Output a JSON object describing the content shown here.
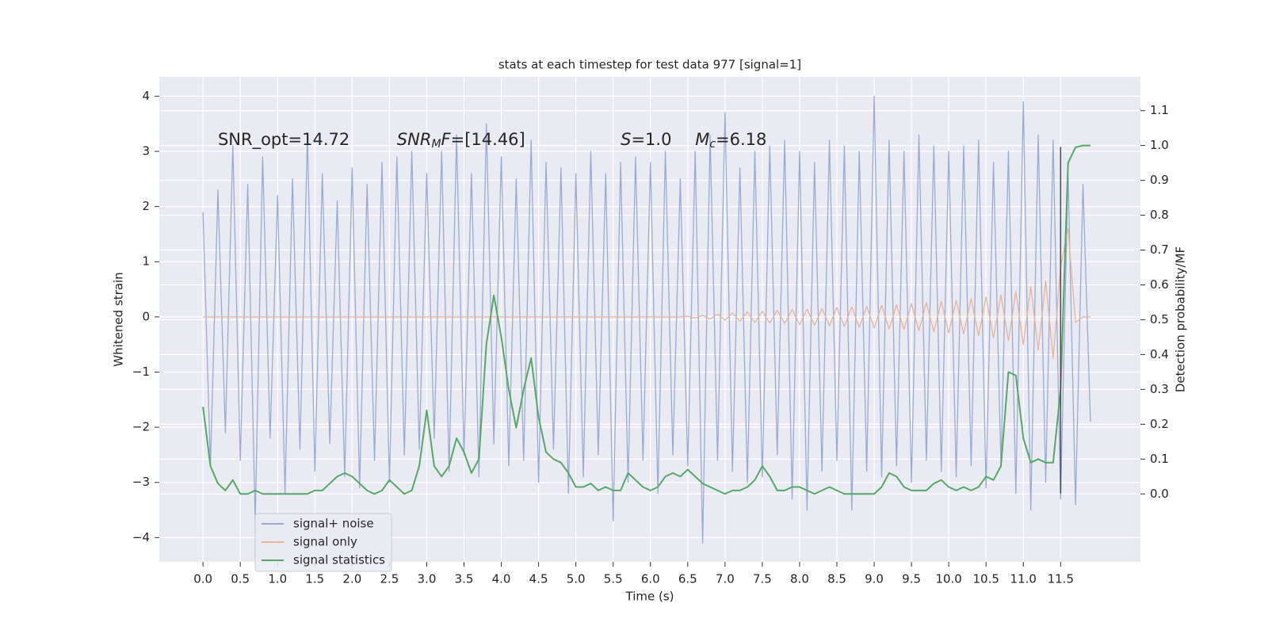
{
  "chart_data": {
    "type": "line",
    "title": "stats at each timestep for test data 977 [signal=1]",
    "xlabel": "Time (s)",
    "ylabel": "Whitened strain",
    "y2label": "Detection probability/MF",
    "background": "#eaeaf2",
    "grid": true,
    "legend": "lower left",
    "xlim": [
      -0.586,
      12.57
    ],
    "ylim": [
      -4.44,
      4.35
    ],
    "y2lim": [
      -0.195,
      1.197
    ],
    "xticks": [
      {
        "value": 0,
        "label": "0.0"
      },
      0.5,
      {
        "value": 1,
        "label": "1.0"
      },
      1.5,
      {
        "value": 2,
        "label": "2.0"
      },
      2.5,
      {
        "value": 3,
        "label": "3.0"
      },
      3.5,
      {
        "value": 4,
        "label": "4.0"
      },
      4.5,
      {
        "value": 5,
        "label": "5.0"
      },
      5.5,
      {
        "value": 6,
        "label": "6.0"
      },
      6.5,
      {
        "value": 7,
        "label": "7.0"
      },
      7.5,
      {
        "value": 8,
        "label": "8.0"
      },
      8.5,
      {
        "value": 9,
        "label": "9.0"
      },
      9.5,
      {
        "value": 10,
        "label": "10.0"
      },
      10.5,
      {
        "value": 11,
        "label": "11.0"
      },
      11.5
    ],
    "yticks": [
      {
        "value": -4,
        "label": "−4"
      },
      {
        "value": -3,
        "label": "−3"
      },
      {
        "value": -2,
        "label": "−2"
      },
      {
        "value": -1,
        "label": "−1"
      },
      0,
      1,
      2,
      3,
      4
    ],
    "y2ticks": [
      {
        "value": 0,
        "label": "0.0"
      },
      0.1,
      0.2,
      0.3,
      0.4,
      0.5,
      0.6,
      0.7,
      0.8,
      0.9,
      {
        "value": 1,
        "label": "1.0"
      },
      1.1
    ],
    "x": [
      0,
      0.1,
      0.2,
      0.3,
      0.4,
      0.5,
      0.6,
      0.7,
      0.8,
      0.9,
      1,
      1.1,
      1.2,
      1.3,
      1.4,
      1.5,
      1.6,
      1.7,
      1.8,
      1.9,
      2,
      2.1,
      2.2,
      2.3,
      2.4,
      2.5,
      2.6,
      2.7,
      2.8,
      2.9,
      3,
      3.1,
      3.2,
      3.3,
      3.4,
      3.5,
      3.6,
      3.7,
      3.8,
      3.9,
      4,
      4.1,
      4.2,
      4.3,
      4.4,
      4.5,
      4.6,
      4.7,
      4.8,
      4.9,
      5,
      5.1,
      5.2,
      5.3,
      5.4,
      5.5,
      5.6,
      5.7,
      5.8,
      5.9,
      6,
      6.1,
      6.2,
      6.3,
      6.4,
      6.5,
      6.6,
      6.7,
      6.8,
      6.9,
      7,
      7.1,
      7.2,
      7.3,
      7.4,
      7.5,
      7.6,
      7.7,
      7.8,
      7.9,
      8,
      8.1,
      8.2,
      8.3,
      8.4,
      8.5,
      8.6,
      8.7,
      8.8,
      8.9,
      9,
      9.1,
      9.2,
      9.3,
      9.4,
      9.5,
      9.6,
      9.7,
      9.8,
      9.9,
      10,
      10.1,
      10.2,
      10.3,
      10.4,
      10.5,
      10.6,
      10.7,
      10.8,
      10.9,
      11,
      11.1,
      11.2,
      11.3,
      11.4,
      11.5,
      11.6,
      11.7,
      11.8,
      11.9
    ],
    "series": [
      {
        "name": "signal+ noise",
        "color": "#9aabd3",
        "axis": "y",
        "values": [
          1.9,
          -2.7,
          2.3,
          -2.1,
          3.1,
          -2.6,
          2.4,
          -3.7,
          2.9,
          -2.2,
          2.2,
          -3.2,
          2.5,
          -2.4,
          3.3,
          -2.8,
          2.6,
          -2.3,
          2.1,
          -2.9,
          2.7,
          -3.1,
          2.4,
          -2.6,
          2.8,
          -3.0,
          2.9,
          -2.5,
          3.0,
          -2.4,
          2.6,
          -2.2,
          3.0,
          -2.8,
          3.3,
          -2.5,
          2.6,
          -2.9,
          3.5,
          -2.3,
          2.9,
          -2.7,
          2.5,
          -2.6,
          3.2,
          -3.0,
          2.8,
          -2.4,
          2.7,
          -3.2,
          2.6,
          -2.9,
          3.0,
          -2.5,
          2.6,
          -3.7,
          2.8,
          -3.0,
          2.9,
          -2.6,
          2.8,
          -3.2,
          3.0,
          -2.5,
          2.5,
          -2.7,
          3.0,
          -4.1,
          3.3,
          -2.6,
          3.7,
          -2.8,
          2.7,
          -3.0,
          3.0,
          -2.9,
          3.1,
          -2.5,
          3.2,
          -3.3,
          3.0,
          -3.5,
          2.8,
          -2.8,
          3.2,
          -2.6,
          3.1,
          -3.5,
          3.0,
          -2.8,
          4.0,
          -2.9,
          3.2,
          -2.7,
          3.0,
          -3.0,
          3.3,
          -2.6,
          3.1,
          -2.8,
          3.0,
          -2.9,
          3.1,
          -2.7,
          3.2,
          -3.1,
          2.8,
          -2.7,
          3.0,
          -3.2,
          3.9,
          -3.5,
          3.3,
          -3.0,
          3.2,
          -3.3,
          2.6,
          -3.4,
          2.4,
          -1.9
        ]
      },
      {
        "name": "signal only",
        "color": "#e9b49a",
        "axis": "y",
        "values": [
          0,
          0,
          0,
          0,
          0,
          0,
          0,
          0,
          0,
          0,
          0,
          0,
          0,
          0,
          0,
          0,
          0,
          0,
          0,
          0,
          0,
          0,
          0,
          0,
          0,
          0,
          0,
          0,
          0,
          0,
          0,
          0,
          0,
          0,
          0,
          0,
          0,
          0,
          0,
          0,
          0,
          0,
          0,
          0,
          0,
          0,
          0,
          0,
          0,
          0,
          0,
          0,
          0,
          0,
          0,
          0,
          0,
          0,
          0,
          0,
          0,
          0,
          0,
          0,
          0,
          0.01,
          -0.02,
          0.03,
          -0.04,
          0.05,
          -0.06,
          0.07,
          -0.08,
          0.09,
          -0.1,
          0.1,
          -0.11,
          0.12,
          -0.12,
          0.13,
          -0.14,
          0.14,
          -0.15,
          0.15,
          -0.16,
          0.17,
          -0.17,
          0.18,
          -0.19,
          0.19,
          -0.2,
          0.21,
          -0.22,
          0.22,
          -0.23,
          0.24,
          -0.25,
          0.26,
          -0.27,
          0.28,
          -0.29,
          0.3,
          -0.31,
          0.33,
          -0.34,
          0.36,
          -0.38,
          0.4,
          -0.43,
          0.46,
          -0.5,
          0.55,
          -0.6,
          0.65,
          -0.75,
          0.9,
          1.6,
          -0.1,
          0,
          0
        ]
      },
      {
        "name": "signal statistics",
        "color": "#55a868",
        "axis": "y2",
        "values": [
          0.25,
          0.08,
          0.03,
          0.01,
          0.04,
          0,
          0,
          0.01,
          0,
          0,
          0,
          0,
          0,
          0,
          0,
          0.01,
          0.01,
          0.03,
          0.05,
          0.06,
          0.05,
          0.03,
          0.01,
          0,
          0.01,
          0.04,
          0.02,
          0,
          0.01,
          0.08,
          0.24,
          0.08,
          0.05,
          0.08,
          0.16,
          0.12,
          0.06,
          0.1,
          0.43,
          0.57,
          0.45,
          0.3,
          0.19,
          0.3,
          0.39,
          0.22,
          0.12,
          0.1,
          0.09,
          0.06,
          0.02,
          0.02,
          0.03,
          0.01,
          0.02,
          0.01,
          0.01,
          0.06,
          0.04,
          0.02,
          0.01,
          0.02,
          0.05,
          0.06,
          0.05,
          0.07,
          0.05,
          0.03,
          0.02,
          0.01,
          0,
          0.01,
          0.01,
          0.02,
          0.04,
          0.08,
          0.05,
          0.01,
          0.01,
          0.02,
          0.02,
          0.01,
          0,
          0.01,
          0.02,
          0.01,
          0,
          0,
          0,
          0,
          0,
          0.02,
          0.06,
          0.05,
          0.02,
          0.01,
          0.01,
          0.01,
          0.03,
          0.04,
          0.02,
          0.01,
          0.02,
          0.01,
          0.02,
          0.05,
          0.04,
          0.08,
          0.35,
          0.34,
          0.16,
          0.09,
          0.1,
          0.09,
          0.09,
          0.3,
          0.95,
          0.995,
          1,
          1
        ]
      }
    ],
    "vline": {
      "x": 11.5,
      "ymin": -3.2,
      "ymax": 3.08,
      "color": "#4a4a5a"
    },
    "annotations": [
      {
        "x": 0.2,
        "y": 3.2,
        "parts": [
          {
            "text": "SNR_opt=14.72"
          }
        ]
      },
      {
        "x": 2.6,
        "y": 3.2,
        "parts": [
          {
            "text": "SNR",
            "style": "italic"
          },
          {
            "text": "M",
            "style": "sub"
          },
          {
            "text": "F",
            "style": "italic"
          },
          {
            "text": "=[14.46]"
          }
        ]
      },
      {
        "x": 5.6,
        "y": 3.2,
        "parts": [
          {
            "text": "S",
            "style": "italic"
          },
          {
            "text": "=1.0"
          }
        ]
      },
      {
        "x": 6.6,
        "y": 3.2,
        "parts": [
          {
            "text": "M",
            "style": "italic"
          },
          {
            "text": "c",
            "style": "sub"
          },
          {
            "text": "=6.18"
          }
        ]
      }
    ]
  }
}
